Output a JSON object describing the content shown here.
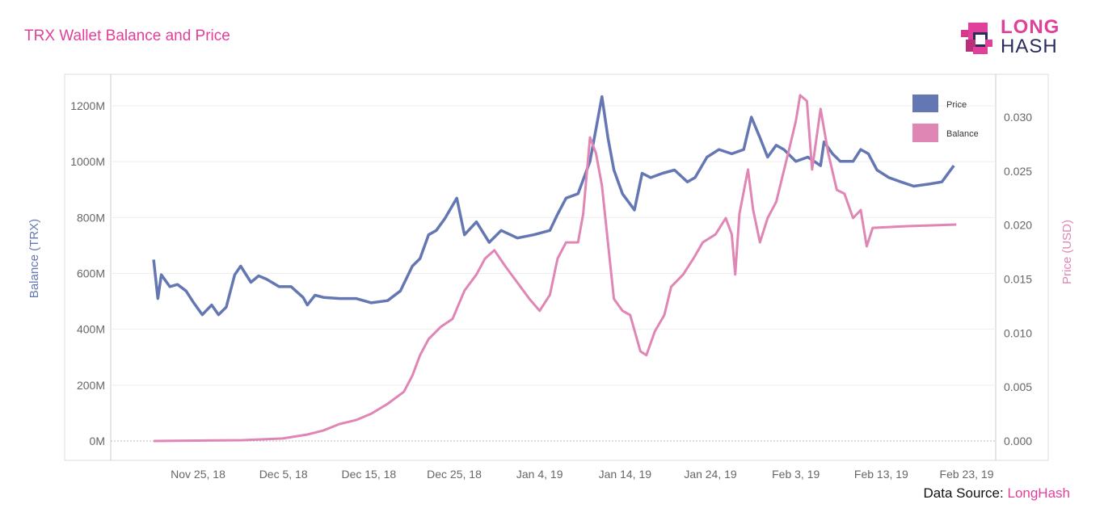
{
  "title": "TRX Wallet Balance and Price",
  "logo": {
    "line1": "LONG",
    "line2": "HASH"
  },
  "source": {
    "label": "Data Source:",
    "name": "LongHash"
  },
  "colors": {
    "price": "#6577b3",
    "balance": "#df86b4",
    "accent": "#e0409a"
  },
  "chart_data": {
    "type": "line",
    "title": "TRX Wallet Balance and Price",
    "x_unit": "days since Nov 25, 2018",
    "xlim": [
      -10.5,
      92
    ],
    "x_ticks": [
      {
        "day": 0,
        "label": "Nov 25, 18"
      },
      {
        "day": 10,
        "label": "Dec 5, 18"
      },
      {
        "day": 20,
        "label": "Dec 15, 18"
      },
      {
        "day": 30,
        "label": "Dec 25, 18"
      },
      {
        "day": 40,
        "label": "Jan 4, 19"
      },
      {
        "day": 50,
        "label": "Jan 14, 19"
      },
      {
        "day": 60,
        "label": "Jan 24, 19"
      },
      {
        "day": 70,
        "label": "Feb 3, 19"
      },
      {
        "day": 80,
        "label": "Feb 13, 19"
      },
      {
        "day": 90,
        "label": "Feb 23, 19"
      }
    ],
    "y_left": {
      "label": "Balance (TRX)",
      "range": [
        0,
        1200
      ],
      "ticks": [
        "0M",
        "200M",
        "400M",
        "600M",
        "800M",
        "1000M",
        "1200M"
      ]
    },
    "y_right": {
      "label": "Price (USD)",
      "range": [
        0,
        0.03
      ],
      "ticks": [
        "0.000",
        "0.005",
        "0.010",
        "0.015",
        "0.020",
        "0.025",
        "0.030"
      ]
    },
    "legend": {
      "position": "top-right",
      "entries": [
        "Price",
        "Balance"
      ]
    },
    "series": [
      {
        "name": "Price",
        "axis": "right",
        "x": [
          -5.2,
          -4.7,
          -4.3,
          -3.3,
          -2.4,
          -1.4,
          -0.5,
          0.5,
          1.6,
          2.4,
          3.3,
          4.3,
          5.0,
          6.2,
          7.1,
          8.0,
          9.5,
          10.9,
          12.3,
          12.8,
          13.7,
          14.7,
          16.6,
          18.5,
          20.3,
          22.2,
          23.7,
          25.1,
          26.0,
          27.0,
          27.9,
          28.9,
          30.3,
          31.2,
          32.6,
          34.1,
          35.5,
          37.4,
          39.3,
          41.2,
          42.1,
          43.1,
          44.5,
          45.9,
          47.3,
          48.0,
          48.7,
          49.7,
          51.1,
          52.0,
          53.0,
          54.4,
          55.8,
          57.3,
          58.2,
          59.6,
          61.0,
          62.5,
          63.9,
          64.8,
          65.8,
          66.7,
          67.7,
          68.6,
          70.0,
          71.4,
          72.9,
          73.3,
          74.3,
          75.2,
          76.7,
          77.6,
          78.5,
          79.5,
          80.9,
          82.3,
          83.8,
          85.6,
          87.1,
          88.5
        ],
        "y": [
          0.0168,
          0.0132,
          0.0154,
          0.0143,
          0.0145,
          0.0139,
          0.0128,
          0.0117,
          0.0126,
          0.0117,
          0.0124,
          0.0154,
          0.0162,
          0.0147,
          0.0153,
          0.015,
          0.0143,
          0.0143,
          0.0133,
          0.0126,
          0.0135,
          0.0133,
          0.0132,
          0.0132,
          0.0128,
          0.013,
          0.0139,
          0.0162,
          0.0169,
          0.0191,
          0.0195,
          0.0206,
          0.0225,
          0.0191,
          0.0203,
          0.0184,
          0.0195,
          0.0188,
          0.0191,
          0.0195,
          0.021,
          0.0225,
          0.0229,
          0.0259,
          0.0319,
          0.0281,
          0.0251,
          0.0229,
          0.0214,
          0.0248,
          0.0244,
          0.0248,
          0.0251,
          0.024,
          0.0244,
          0.0263,
          0.027,
          0.0266,
          0.027,
          0.03,
          0.0281,
          0.0263,
          0.0274,
          0.027,
          0.0259,
          0.0263,
          0.0255,
          0.0277,
          0.0266,
          0.0259,
          0.0259,
          0.027,
          0.0266,
          0.0251,
          0.0244,
          0.024,
          0.0236,
          0.0238,
          0.024,
          0.0255
        ]
      },
      {
        "name": "Balance",
        "axis": "left",
        "x": [
          -5.2,
          5.2,
          9.9,
          12.8,
          14.7,
          16.6,
          18.5,
          20.3,
          22.2,
          24.1,
          25.1,
          26.0,
          27.0,
          28.4,
          29.8,
          31.2,
          32.6,
          33.6,
          34.7,
          36.0,
          37.4,
          38.8,
          40.0,
          41.2,
          42.1,
          43.1,
          44.5,
          45.1,
          45.9,
          46.6,
          47.3,
          48.0,
          48.7,
          49.7,
          50.6,
          51.8,
          52.5,
          53.5,
          54.6,
          55.4,
          56.8,
          58.0,
          59.1,
          60.6,
          61.8,
          62.5,
          62.9,
          63.4,
          64.4,
          65.0,
          65.8,
          66.7,
          67.7,
          68.4,
          69.1,
          70.0,
          70.5,
          71.3,
          71.9,
          72.9,
          73.8,
          74.8,
          75.7,
          76.7,
          77.6,
          78.3,
          79.0,
          82.8,
          88.8
        ],
        "y": [
          0,
          3,
          9,
          23,
          38,
          61,
          75,
          98,
          133,
          176,
          234,
          307,
          365,
          408,
          437,
          538,
          596,
          653,
          683,
          625,
          567,
          509,
          466,
          523,
          653,
          711,
          711,
          813,
          1087,
          1030,
          914,
          711,
          509,
          466,
          451,
          321,
          307,
          393,
          451,
          552,
          596,
          653,
          711,
          740,
          798,
          740,
          596,
          813,
          972,
          827,
          711,
          798,
          856,
          943,
          1030,
          1145,
          1238,
          1217,
          972,
          1189,
          1030,
          899,
          885,
          798,
          827,
          697,
          763,
          769,
          775
        ]
      }
    ]
  }
}
